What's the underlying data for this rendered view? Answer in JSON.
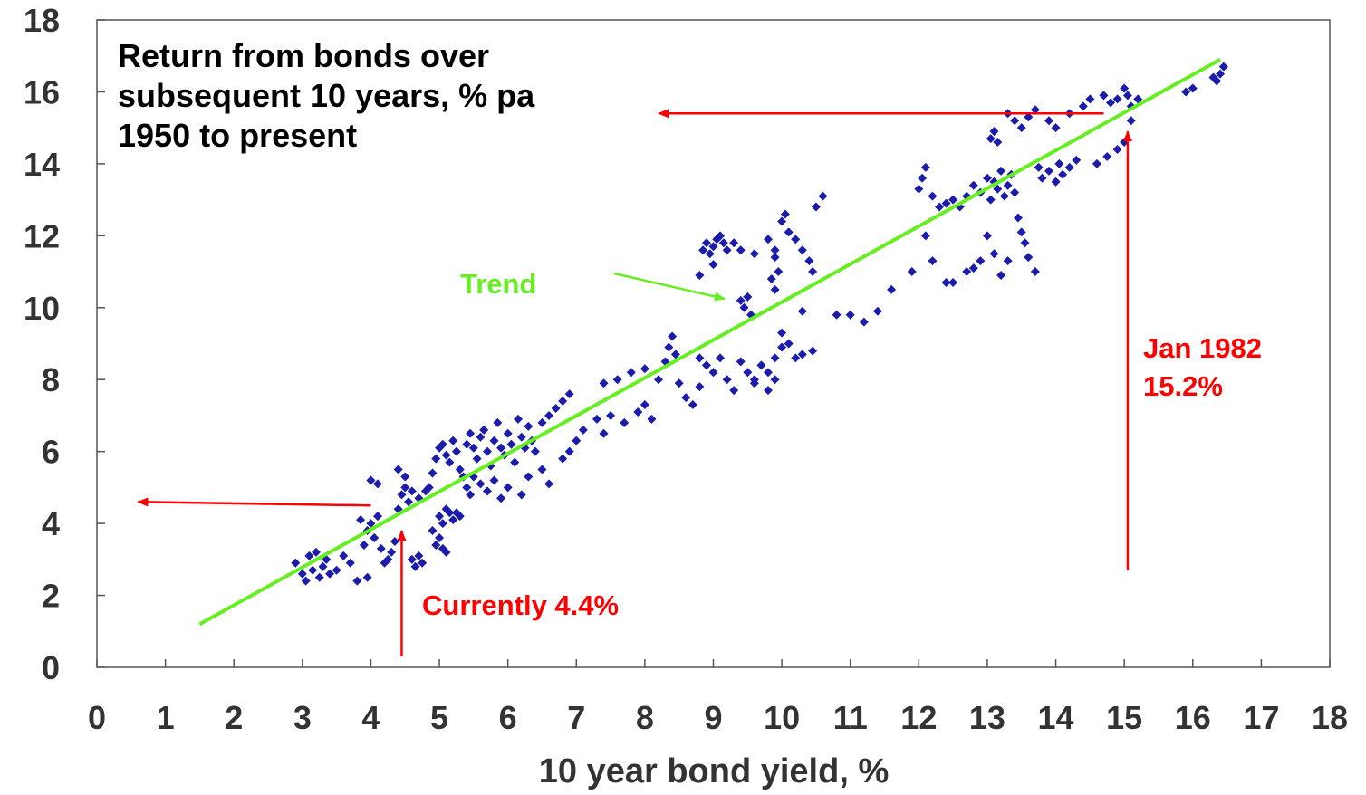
{
  "chart_data": {
    "type": "scatter",
    "title_lines": [
      "Return from bonds over",
      "subsequent 10 years, % pa",
      "1950 to present"
    ],
    "xlabel": "10 year bond yield, %",
    "ylabel": "",
    "xlim": [
      0,
      18
    ],
    "ylim": [
      0,
      18
    ],
    "xticks": [
      "0",
      "1",
      "2",
      "3",
      "4",
      "5",
      "6",
      "7",
      "8",
      "9",
      "10",
      "11",
      "12",
      "13",
      "14",
      "15",
      "16",
      "17",
      "18"
    ],
    "yticks": [
      "0",
      "2",
      "4",
      "6",
      "8",
      "10",
      "12",
      "14",
      "16",
      "18"
    ],
    "grid": false,
    "colors": {
      "points": "#1c1cab",
      "trend": "#66ee22",
      "annotation": "#ff0000"
    },
    "trend": {
      "label": "Trend",
      "x": [
        1.5,
        16.4
      ],
      "y": [
        1.2,
        16.9
      ]
    },
    "annotations": [
      {
        "text": "Currently 4.4%",
        "arrow_up": [
          [
            4.45,
            0.3
          ],
          [
            4.45,
            3.8
          ]
        ],
        "arrow_left": [
          [
            4.0,
            4.5
          ],
          [
            0.6,
            4.6
          ]
        ]
      },
      {
        "text": "Jan 1982",
        "text2": "15.2%",
        "arrow_up": [
          [
            15.05,
            2.7
          ],
          [
            15.05,
            14.9
          ]
        ],
        "arrow_left": [
          [
            14.7,
            15.4
          ],
          [
            8.2,
            15.4
          ]
        ]
      }
    ],
    "series": [
      {
        "points": [
          [
            2.9,
            2.9
          ],
          [
            3.0,
            2.6
          ],
          [
            3.05,
            2.4
          ],
          [
            3.1,
            3.1
          ],
          [
            3.15,
            2.7
          ],
          [
            3.2,
            3.2
          ],
          [
            3.25,
            2.5
          ],
          [
            3.3,
            2.8
          ],
          [
            3.35,
            3.0
          ],
          [
            3.4,
            2.6
          ],
          [
            3.5,
            2.7
          ],
          [
            3.6,
            3.1
          ],
          [
            3.7,
            2.9
          ],
          [
            3.8,
            2.4
          ],
          [
            3.9,
            3.4
          ],
          [
            3.95,
            2.5
          ],
          [
            3.85,
            4.1
          ],
          [
            3.95,
            3.8
          ],
          [
            4.0,
            4.0
          ],
          [
            4.05,
            3.6
          ],
          [
            4.1,
            4.2
          ],
          [
            4.15,
            3.3
          ],
          [
            4.2,
            2.9
          ],
          [
            4.25,
            3.0
          ],
          [
            4.3,
            3.2
          ],
          [
            4.35,
            3.5
          ],
          [
            4.0,
            5.2
          ],
          [
            4.1,
            5.1
          ],
          [
            4.4,
            4.4
          ],
          [
            4.45,
            4.8
          ],
          [
            4.5,
            5.0
          ],
          [
            4.4,
            5.5
          ],
          [
            4.5,
            5.3
          ],
          [
            4.55,
            4.6
          ],
          [
            4.6,
            3.0
          ],
          [
            4.65,
            2.8
          ],
          [
            4.7,
            3.1
          ],
          [
            4.75,
            2.9
          ],
          [
            4.6,
            4.9
          ],
          [
            4.7,
            4.7
          ],
          [
            4.8,
            4.9
          ],
          [
            4.85,
            5.0
          ],
          [
            4.9,
            3.8
          ],
          [
            4.95,
            3.4
          ],
          [
            5.0,
            3.6
          ],
          [
            5.05,
            3.3
          ],
          [
            5.1,
            3.2
          ],
          [
            5.0,
            4.2
          ],
          [
            5.05,
            4.0
          ],
          [
            5.1,
            4.4
          ],
          [
            5.15,
            4.3
          ],
          [
            5.2,
            4.1
          ],
          [
            5.25,
            4.3
          ],
          [
            5.3,
            4.2
          ],
          [
            4.9,
            5.4
          ],
          [
            4.95,
            5.8
          ],
          [
            5.0,
            6.1
          ],
          [
            5.05,
            6.2
          ],
          [
            5.1,
            5.9
          ],
          [
            5.15,
            5.7
          ],
          [
            5.2,
            6.3
          ],
          [
            5.25,
            6.0
          ],
          [
            5.3,
            5.5
          ],
          [
            5.35,
            5.3
          ],
          [
            5.4,
            5.0
          ],
          [
            5.45,
            4.8
          ],
          [
            5.4,
            6.2
          ],
          [
            5.45,
            6.5
          ],
          [
            5.5,
            6.1
          ],
          [
            5.55,
            5.8
          ],
          [
            5.6,
            6.4
          ],
          [
            5.65,
            6.6
          ],
          [
            5.7,
            6.0
          ],
          [
            5.75,
            5.6
          ],
          [
            5.8,
            6.3
          ],
          [
            5.85,
            6.8
          ],
          [
            5.9,
            6.1
          ],
          [
            5.95,
            5.9
          ],
          [
            6.0,
            6.5
          ],
          [
            6.05,
            6.2
          ],
          [
            6.1,
            5.7
          ],
          [
            6.15,
            6.9
          ],
          [
            6.2,
            6.4
          ],
          [
            6.25,
            6.1
          ],
          [
            6.3,
            6.7
          ],
          [
            6.35,
            6.3
          ],
          [
            6.4,
            6.0
          ],
          [
            6.5,
            6.8
          ],
          [
            6.6,
            7.0
          ],
          [
            6.7,
            7.2
          ],
          [
            6.8,
            7.4
          ],
          [
            6.9,
            7.6
          ],
          [
            5.5,
            5.3
          ],
          [
            5.6,
            5.1
          ],
          [
            5.7,
            4.9
          ],
          [
            5.8,
            5.2
          ],
          [
            5.9,
            4.7
          ],
          [
            6.0,
            5.0
          ],
          [
            6.2,
            4.8
          ],
          [
            6.3,
            5.3
          ],
          [
            6.5,
            5.5
          ],
          [
            6.6,
            5.1
          ],
          [
            6.8,
            5.8
          ],
          [
            6.9,
            6.0
          ],
          [
            7.0,
            6.3
          ],
          [
            7.1,
            6.6
          ],
          [
            7.3,
            6.9
          ],
          [
            7.4,
            6.5
          ],
          [
            7.5,
            7.0
          ],
          [
            7.7,
            6.8
          ],
          [
            7.9,
            7.1
          ],
          [
            8.0,
            7.3
          ],
          [
            8.1,
            6.9
          ],
          [
            7.4,
            7.9
          ],
          [
            7.6,
            8.0
          ],
          [
            7.8,
            8.2
          ],
          [
            8.0,
            8.3
          ],
          [
            8.2,
            8.0
          ],
          [
            8.3,
            8.5
          ],
          [
            8.35,
            8.9
          ],
          [
            8.4,
            9.2
          ],
          [
            8.45,
            8.7
          ],
          [
            8.5,
            7.9
          ],
          [
            8.6,
            7.5
          ],
          [
            8.7,
            7.3
          ],
          [
            8.8,
            7.8
          ],
          [
            8.8,
            8.6
          ],
          [
            8.9,
            8.4
          ],
          [
            9.0,
            8.2
          ],
          [
            9.1,
            8.6
          ],
          [
            9.2,
            8.0
          ],
          [
            9.3,
            7.7
          ],
          [
            9.4,
            8.5
          ],
          [
            9.5,
            8.2
          ],
          [
            9.6,
            8.0
          ],
          [
            9.7,
            8.4
          ],
          [
            9.8,
            8.2
          ],
          [
            9.9,
            8.0
          ],
          [
            9.6,
            7.9
          ],
          [
            9.8,
            7.7
          ],
          [
            9.9,
            8.6
          ],
          [
            10.0,
            8.9
          ],
          [
            10.0,
            9.3
          ],
          [
            10.1,
            9.0
          ],
          [
            10.2,
            8.6
          ],
          [
            10.3,
            8.7
          ],
          [
            10.45,
            8.8
          ],
          [
            8.8,
            10.9
          ],
          [
            8.85,
            11.6
          ],
          [
            8.9,
            11.8
          ],
          [
            8.95,
            11.5
          ],
          [
            9.0,
            11.7
          ],
          [
            9.05,
            11.9
          ],
          [
            9.1,
            12.0
          ],
          [
            9.15,
            11.8
          ],
          [
            9.2,
            11.6
          ],
          [
            9.3,
            11.8
          ],
          [
            9.4,
            11.6
          ],
          [
            9.6,
            11.5
          ],
          [
            9.0,
            11.2
          ],
          [
            9.4,
            10.2
          ],
          [
            9.45,
            10.0
          ],
          [
            9.5,
            10.3
          ],
          [
            9.55,
            9.8
          ],
          [
            9.8,
            11.9
          ],
          [
            9.9,
            11.6
          ],
          [
            10.0,
            12.4
          ],
          [
            10.05,
            12.6
          ],
          [
            10.1,
            12.1
          ],
          [
            10.2,
            11.9
          ],
          [
            10.3,
            11.6
          ],
          [
            10.4,
            11.3
          ],
          [
            10.45,
            11.0
          ],
          [
            9.95,
            11.0
          ],
          [
            9.9,
            10.5
          ],
          [
            9.85,
            10.8
          ],
          [
            9.9,
            11.4
          ],
          [
            10.3,
            9.9
          ],
          [
            10.5,
            12.8
          ],
          [
            10.6,
            13.1
          ],
          [
            10.8,
            9.8
          ],
          [
            11.0,
            9.8
          ],
          [
            11.2,
            9.6
          ],
          [
            11.4,
            9.9
          ],
          [
            11.6,
            10.5
          ],
          [
            11.9,
            11.0
          ],
          [
            12.1,
            12.0
          ],
          [
            12.2,
            11.3
          ],
          [
            12.4,
            10.7
          ],
          [
            12.5,
            10.7
          ],
          [
            12.7,
            11.0
          ],
          [
            12.8,
            11.1
          ],
          [
            12.9,
            11.3
          ],
          [
            12.0,
            13.3
          ],
          [
            12.05,
            13.6
          ],
          [
            12.1,
            13.9
          ],
          [
            12.2,
            13.1
          ],
          [
            12.3,
            12.8
          ],
          [
            12.4,
            12.9
          ],
          [
            12.5,
            13.0
          ],
          [
            12.6,
            12.8
          ],
          [
            12.7,
            13.1
          ],
          [
            12.8,
            13.4
          ],
          [
            12.9,
            13.2
          ],
          [
            13.0,
            13.6
          ],
          [
            13.05,
            13.0
          ],
          [
            13.1,
            13.5
          ],
          [
            13.15,
            13.3
          ],
          [
            13.2,
            13.8
          ],
          [
            13.25,
            13.1
          ],
          [
            13.3,
            13.4
          ],
          [
            13.35,
            13.7
          ],
          [
            13.4,
            13.2
          ],
          [
            13.45,
            12.5
          ],
          [
            13.5,
            12.1
          ],
          [
            13.55,
            11.8
          ],
          [
            13.6,
            11.4
          ],
          [
            13.7,
            11.0
          ],
          [
            13.75,
            13.9
          ],
          [
            13.8,
            13.6
          ],
          [
            13.9,
            13.8
          ],
          [
            14.0,
            13.5
          ],
          [
            14.05,
            14.0
          ],
          [
            14.1,
            13.7
          ],
          [
            14.2,
            13.9
          ],
          [
            14.3,
            14.1
          ],
          [
            13.0,
            12.0
          ],
          [
            13.1,
            11.5
          ],
          [
            13.2,
            10.9
          ],
          [
            13.3,
            11.3
          ],
          [
            13.05,
            14.7
          ],
          [
            13.1,
            14.9
          ],
          [
            13.15,
            14.6
          ],
          [
            13.3,
            15.4
          ],
          [
            13.4,
            15.2
          ],
          [
            13.5,
            15.0
          ],
          [
            13.6,
            15.3
          ],
          [
            13.7,
            15.5
          ],
          [
            13.9,
            15.2
          ],
          [
            14.0,
            15.0
          ],
          [
            14.2,
            15.4
          ],
          [
            14.4,
            15.6
          ],
          [
            14.5,
            15.8
          ],
          [
            14.7,
            15.9
          ],
          [
            14.8,
            15.7
          ],
          [
            14.9,
            15.8
          ],
          [
            15.0,
            16.1
          ],
          [
            15.05,
            15.9
          ],
          [
            15.1,
            15.6
          ],
          [
            15.2,
            15.8
          ],
          [
            14.9,
            14.4
          ],
          [
            15.0,
            14.6
          ],
          [
            14.6,
            14.0
          ],
          [
            14.75,
            14.2
          ],
          [
            15.1,
            15.2
          ],
          [
            15.9,
            16.0
          ],
          [
            16.0,
            16.1
          ],
          [
            16.35,
            16.3
          ],
          [
            16.4,
            16.5
          ],
          [
            16.45,
            16.7
          ],
          [
            16.3,
            16.4
          ]
        ]
      }
    ]
  }
}
